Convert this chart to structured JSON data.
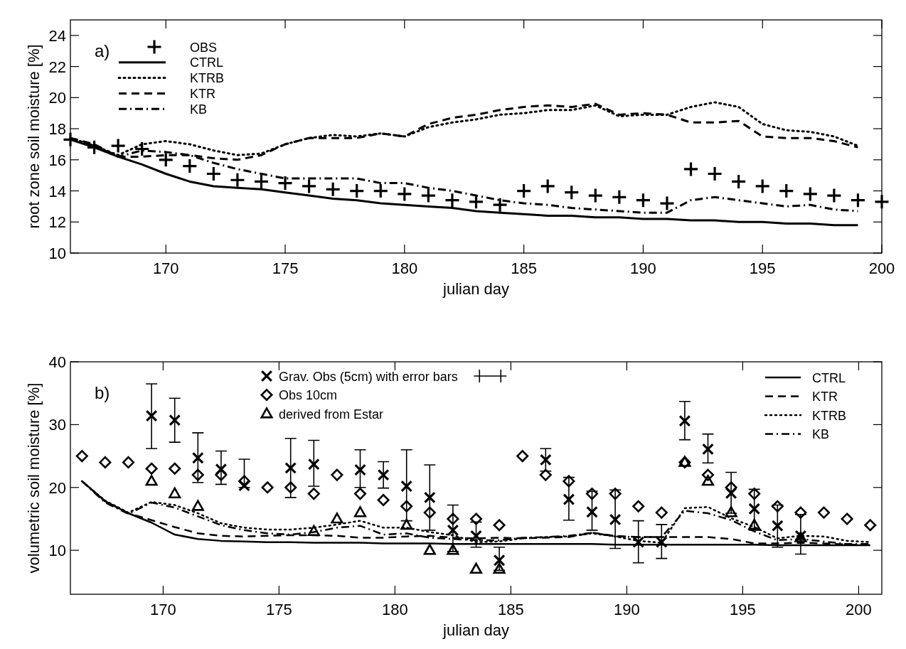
{
  "chart_data": [
    {
      "type": "line",
      "xlabel": "julian day",
      "ylabel": "root zone soil moisture [%]",
      "annotations": [
        "a)"
      ],
      "legend": "top left",
      "xlim": [
        166,
        200
      ],
      "ylim": [
        10,
        25
      ],
      "xticks": [
        170,
        175,
        180,
        185,
        190,
        195,
        200
      ],
      "yticks": [
        10,
        12,
        14,
        16,
        18,
        20,
        22,
        24
      ],
      "x": [
        166,
        167,
        168,
        169,
        170,
        171,
        172,
        173,
        174,
        175,
        176,
        177,
        178,
        179,
        180,
        181,
        182,
        183,
        184,
        185,
        186,
        187,
        188,
        189,
        190,
        191,
        192,
        193,
        194,
        195,
        196,
        197,
        198,
        199
      ],
      "series": [
        {
          "name": "OBS",
          "type": "scatter",
          "marker": "cross",
          "color": "#000000",
          "x": [
            166,
            167,
            168,
            169,
            170,
            171,
            172,
            173,
            174,
            175,
            176,
            177,
            178,
            179,
            180,
            181,
            182,
            183,
            184,
            185,
            186,
            187,
            188,
            189,
            190,
            191,
            192,
            193,
            194,
            195,
            196,
            197,
            198,
            199,
            200
          ],
          "values": [
            17.3,
            16.8,
            16.9,
            16.7,
            16.0,
            15.6,
            15.1,
            14.7,
            14.6,
            14.5,
            14.3,
            14.1,
            14.0,
            14.0,
            13.8,
            13.7,
            13.4,
            13.3,
            13.1,
            14.0,
            14.3,
            13.9,
            13.7,
            13.6,
            13.4,
            13.2,
            15.4,
            15.1,
            14.6,
            14.3,
            14.0,
            13.8,
            13.7,
            13.4,
            13.3
          ]
        },
        {
          "name": "CTRL",
          "type": "line",
          "line_style": "solid",
          "color": "#000000",
          "values": [
            17.3,
            16.8,
            16.2,
            15.7,
            15.1,
            14.6,
            14.3,
            14.2,
            14.1,
            13.9,
            13.7,
            13.5,
            13.4,
            13.2,
            13.1,
            13.0,
            12.9,
            12.7,
            12.6,
            12.5,
            12.4,
            12.4,
            12.3,
            12.3,
            12.2,
            12.2,
            12.1,
            12.1,
            12.0,
            12.0,
            11.9,
            11.9,
            11.8,
            11.8
          ]
        },
        {
          "name": "KTRB",
          "type": "line",
          "line_style": "dotted",
          "color": "#000000",
          "values": [
            17.4,
            16.9,
            16.3,
            17.0,
            17.2,
            17.0,
            16.6,
            16.3,
            16.4,
            17.0,
            17.4,
            17.6,
            17.5,
            17.7,
            17.5,
            18.1,
            18.4,
            18.6,
            18.9,
            19.0,
            19.2,
            19.2,
            19.5,
            18.8,
            18.9,
            18.9,
            19.4,
            19.7,
            19.4,
            18.3,
            17.9,
            17.8,
            17.5,
            16.9
          ]
        },
        {
          "name": "KTR",
          "type": "line",
          "line_style": "dashed",
          "color": "#000000",
          "values": [
            17.4,
            17.0,
            16.2,
            16.2,
            16.3,
            16.3,
            16.1,
            16.0,
            16.3,
            17.0,
            17.4,
            17.4,
            17.4,
            17.7,
            17.5,
            18.3,
            18.7,
            18.9,
            19.2,
            19.4,
            19.5,
            19.4,
            19.6,
            18.9,
            19.0,
            18.9,
            18.4,
            18.4,
            18.5,
            17.5,
            17.4,
            17.4,
            17.2,
            16.8
          ]
        },
        {
          "name": "KB",
          "type": "line",
          "line_style": "dashdot",
          "color": "#000000",
          "values": [
            17.4,
            16.9,
            16.2,
            16.6,
            16.5,
            16.3,
            15.8,
            15.4,
            15.1,
            14.8,
            14.8,
            14.8,
            14.8,
            14.5,
            14.5,
            14.2,
            14.0,
            13.7,
            13.4,
            13.2,
            13.1,
            12.9,
            12.8,
            12.7,
            12.6,
            12.6,
            13.4,
            13.6,
            13.4,
            13.2,
            13.0,
            13.1,
            12.8,
            12.7
          ]
        }
      ]
    },
    {
      "type": "line",
      "xlabel": "julian day",
      "ylabel": "volumetric soil moisture [%]",
      "annotations": [
        "b)"
      ],
      "legend": "top right",
      "xlim": [
        166,
        201
      ],
      "ylim": [
        3,
        40
      ],
      "xticks": [
        170,
        175,
        180,
        185,
        190,
        195,
        200
      ],
      "yticks": [
        10,
        20,
        30,
        40
      ],
      "x": [
        166.5,
        167.5,
        168.5,
        169.5,
        170.5,
        171.5,
        172.5,
        173.5,
        174.5,
        175.5,
        176.5,
        177.5,
        178.5,
        179.5,
        180.5,
        181.5,
        182.5,
        183.5,
        184.5,
        185.5,
        186.5,
        187.5,
        188.5,
        189.5,
        190.5,
        191.5,
        192.5,
        193.5,
        194.5,
        195.5,
        196.5,
        197.5,
        198.5,
        199.5,
        200.5
      ],
      "series": [
        {
          "name": "CTRL",
          "type": "line",
          "line_style": "solid",
          "color": "#000000",
          "values": [
            21.0,
            17.8,
            15.9,
            14.4,
            12.5,
            11.8,
            11.5,
            11.4,
            11.3,
            11.3,
            11.2,
            11.2,
            11.2,
            11.1,
            11.1,
            11.1,
            11.0,
            11.0,
            11.0,
            11.0,
            11.0,
            11.0,
            11.0,
            10.9,
            10.9,
            10.9,
            10.9,
            10.9,
            10.9,
            10.9,
            10.8,
            10.8,
            10.8,
            10.8,
            10.8
          ]
        },
        {
          "name": "KTR",
          "type": "line",
          "line_style": "dashed",
          "color": "#000000",
          "values": [
            21.0,
            17.8,
            15.9,
            14.8,
            13.7,
            12.7,
            12.3,
            12.2,
            12.3,
            12.4,
            12.4,
            12.3,
            12.0,
            12.0,
            12.2,
            12.3,
            12.0,
            11.9,
            12.0,
            11.9,
            12.0,
            12.1,
            12.8,
            12.3,
            12.1,
            12.1,
            12.1,
            12.1,
            11.8,
            11.1,
            11.1,
            11.2,
            11.1,
            10.9,
            10.9
          ]
        },
        {
          "name": "KTRB",
          "type": "line",
          "line_style": "dotted",
          "color": "#000000",
          "values": [
            21.0,
            17.9,
            16.0,
            17.7,
            17.2,
            15.9,
            14.3,
            13.6,
            13.3,
            13.3,
            13.6,
            14.1,
            14.7,
            13.6,
            13.6,
            12.9,
            12.4,
            11.3,
            11.4,
            11.9,
            12.1,
            12.2,
            12.7,
            12.2,
            11.5,
            11.2,
            16.7,
            16.9,
            15.1,
            13.7,
            11.9,
            12.3,
            12.2,
            11.5,
            11.3
          ]
        },
        {
          "name": "KB",
          "type": "line",
          "line_style": "dashdot",
          "color": "#000000",
          "values": [
            21.0,
            17.6,
            15.8,
            17.6,
            16.8,
            15.4,
            14.0,
            13.2,
            12.7,
            12.5,
            12.9,
            13.6,
            13.9,
            12.5,
            12.7,
            12.0,
            11.8,
            11.6,
            11.6,
            12.0,
            12.1,
            12.3,
            12.8,
            12.2,
            12.1,
            12.1,
            16.3,
            15.9,
            14.8,
            13.0,
            11.6,
            11.8,
            11.4,
            11.0,
            11.0
          ]
        },
        {
          "name": "Grav. Obs (5cm) with error bars",
          "type": "scatter",
          "marker": "x",
          "color": "#000000",
          "x": [
            169.5,
            170.5,
            171.5,
            172.5,
            173.5,
            175.5,
            176.5,
            178.5,
            179.5,
            180.5,
            181.5,
            182.5,
            183.5,
            184.5,
            186.5,
            187.5,
            188.5,
            189.5,
            190.5,
            191.5,
            192.5,
            193.5,
            194.5,
            195.5,
            196.5,
            197.5
          ],
          "values": [
            31.4,
            30.7,
            24.7,
            22.9,
            20.3,
            23.1,
            23.7,
            22.8,
            22.0,
            20.2,
            18.4,
            13.2,
            12.3,
            8.4,
            24.4,
            18.1,
            16.1,
            14.9,
            11.3,
            11.3,
            30.6,
            26.1,
            19.1,
            16.6,
            13.9,
            12.3
          ],
          "errors": [
            [
              26.2,
              36.5
            ],
            [
              27.2,
              34.2
            ],
            [
              20.8,
              28.7
            ],
            [
              20.5,
              25.8
            ],
            [
              20.0,
              24.5
            ],
            [
              18.4,
              27.8
            ],
            [
              20.2,
              27.5
            ],
            [
              20.0,
              26.0
            ],
            [
              19.9,
              24.1
            ],
            [
              14.7,
              26.0
            ],
            [
              13.2,
              23.6
            ],
            [
              9.8,
              17.2
            ],
            [
              10.5,
              14.5
            ],
            [
              6.8,
              10.5
            ],
            [
              22.6,
              26.2
            ],
            [
              14.8,
              21.6
            ],
            [
              13.2,
              19.4
            ],
            [
              10.3,
              19.6
            ],
            [
              8.0,
              14.7
            ],
            [
              8.7,
              14.1
            ],
            [
              27.6,
              33.7
            ],
            [
              23.9,
              28.5
            ],
            [
              15.9,
              22.4
            ],
            [
              13.2,
              19.7
            ],
            [
              10.5,
              17.2
            ],
            [
              9.4,
              15.7
            ]
          ]
        },
        {
          "name": "Obs 10cm",
          "type": "scatter",
          "marker": "diamond",
          "color": "#000000",
          "values": [
            25,
            24,
            24,
            23,
            23,
            22,
            22,
            21,
            20,
            20,
            19,
            22,
            19,
            18,
            17,
            16,
            15,
            15,
            14,
            25,
            22,
            21,
            19,
            19,
            17,
            16,
            24,
            22,
            20,
            19,
            17,
            16,
            16,
            15,
            14
          ]
        },
        {
          "name": "derived from Estar",
          "type": "scatter",
          "marker": "triangle",
          "color": "#000000",
          "x": [
            169.5,
            170.5,
            171.5,
            176.5,
            177.5,
            178.5,
            180.5,
            181.5,
            182.5,
            183.5,
            184.5,
            192.5,
            193.5,
            194.5,
            195.5,
            197.5
          ],
          "values": [
            21,
            19,
            17,
            13,
            15,
            16,
            14,
            10,
            10,
            7,
            7,
            24,
            21,
            16,
            14,
            12
          ]
        }
      ]
    }
  ]
}
